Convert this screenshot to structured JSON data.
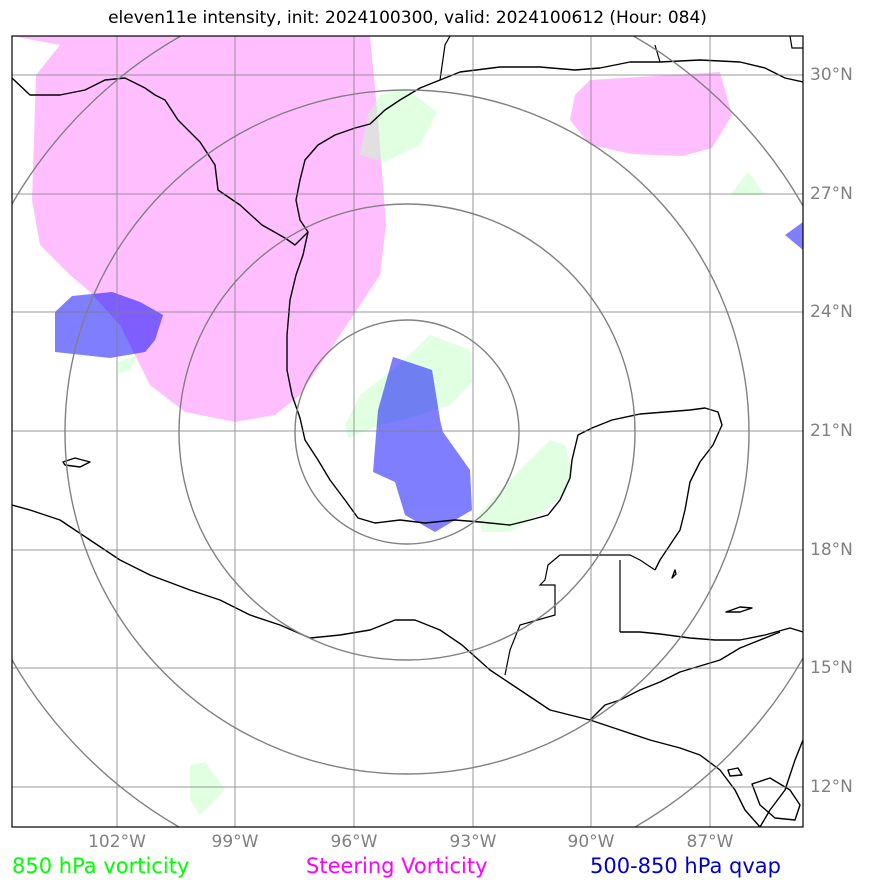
{
  "title": "eleven11e intensity, init: 2024100300, valid: 2024100612 (Hour: 084)",
  "map": {
    "lon_ticks": [
      "102°W",
      "99°W",
      "96°W",
      "93°W",
      "90°W",
      "87°W"
    ],
    "lat_ticks": [
      "30°N",
      "27°N",
      "24°N",
      "21°N",
      "18°N",
      "15°N",
      "12°N"
    ],
    "range_rings": 4
  },
  "legend": {
    "vorticity850": {
      "label": "850 hPa vorticity",
      "color": "#00ff00"
    },
    "steering": {
      "label": "Steering Vorticity",
      "color": "#ff00ff"
    },
    "qvap": {
      "label": "500-850 hPa qvap",
      "color": "#0000cc"
    }
  },
  "colors": {
    "steering_fill": "#ff80ff",
    "vort850_fill": "#b3ffb3",
    "qvap_fill": "#0000ff",
    "grid": "#808080",
    "coast": "#000000"
  }
}
